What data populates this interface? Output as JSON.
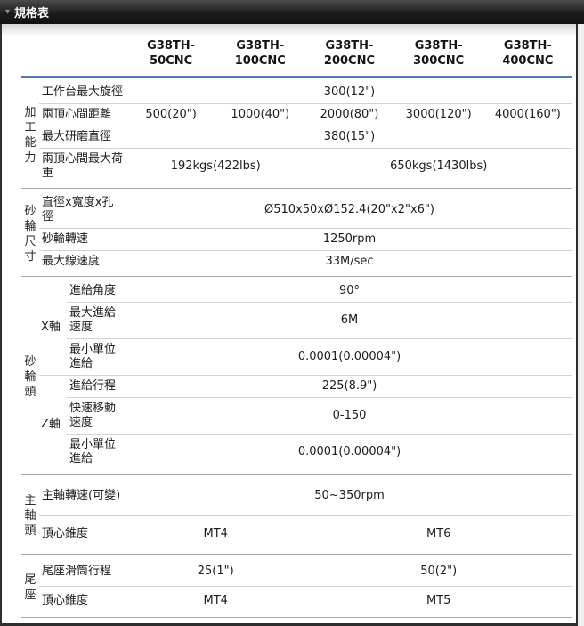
{
  "panel": {
    "title": "規格表",
    "collapse_icon": "▾"
  },
  "table": {
    "models": [
      {
        "line1": "G38TH-",
        "line2": "50CNC"
      },
      {
        "line1": "G38TH-",
        "line2": "100CNC"
      },
      {
        "line1": "G38TH-",
        "line2": "200CNC"
      },
      {
        "line1": "G38TH-",
        "line2": "300CNC"
      },
      {
        "line1": "G38TH-",
        "line2": "400CNC"
      }
    ],
    "accent_color": "#4a7cbe",
    "groups": [
      {
        "name": "加工能力",
        "rows": [
          {
            "label": "工作台最大旋徑",
            "values": [
              {
                "text": "300(12\")",
                "span": 5
              }
            ]
          },
          {
            "label": "兩頂心間距離",
            "values": [
              {
                "text": "500(20\")",
                "span": 1
              },
              {
                "text": "1000(40\")",
                "span": 1
              },
              {
                "text": "2000(80\")",
                "span": 1
              },
              {
                "text": "3000(120\")",
                "span": 1
              },
              {
                "text": "4000(160\")",
                "span": 1
              }
            ]
          },
          {
            "label": "最大研磨直徑",
            "values": [
              {
                "text": "380(15\")",
                "span": 5
              }
            ]
          },
          {
            "label": "兩頂心間最大荷重",
            "values": [
              {
                "text": "192kgs(422lbs)",
                "span": 2
              },
              {
                "text": "650kgs(1430lbs)",
                "span": 3
              }
            ]
          }
        ]
      },
      {
        "name": "砂輪尺寸",
        "rows": [
          {
            "label": "直徑x寬度x孔徑",
            "values": [
              {
                "text": "Ø510x50xØ152.4(20\"x2\"x6\")",
                "span": 5
              }
            ]
          },
          {
            "label": "砂輪轉速",
            "values": [
              {
                "text": "1250rpm",
                "span": 5
              }
            ]
          },
          {
            "label": "最大線速度",
            "values": [
              {
                "text": "33M/sec",
                "span": 5
              }
            ]
          }
        ]
      },
      {
        "name": "砂輪頭",
        "subgroups": [
          {
            "name": "X軸",
            "rows": [
              {
                "label": "進給角度",
                "values": [
                  {
                    "text": "90°",
                    "span": 5
                  }
                ]
              },
              {
                "label": "最大進給速度",
                "values": [
                  {
                    "text": "6M",
                    "span": 5
                  }
                ]
              },
              {
                "label": "最小單位進給",
                "values": [
                  {
                    "text": "0.0001(0.00004\")",
                    "span": 5
                  }
                ]
              }
            ]
          },
          {
            "name": "Z軸",
            "rows": [
              {
                "label": "進給行程",
                "values": [
                  {
                    "text": "225(8.9\")",
                    "span": 5
                  }
                ]
              },
              {
                "label": "快速移動速度",
                "values": [
                  {
                    "text": "0-150",
                    "span": 5
                  }
                ]
              },
              {
                "label": "最小單位進給",
                "values": [
                  {
                    "text": "0.0001(0.00004\")",
                    "span": 5
                  }
                ]
              }
            ]
          }
        ]
      },
      {
        "name": "主軸頭",
        "rows": [
          {
            "label": "主軸轉速(可變)",
            "values": [
              {
                "text": "50~350rpm",
                "span": 5
              }
            ]
          },
          {
            "label": "頂心錐度",
            "values": [
              {
                "text": "MT4",
                "span": 2
              },
              {
                "text": "MT6",
                "span": 3
              }
            ]
          }
        ]
      },
      {
        "name": "尾座",
        "rows": [
          {
            "label": "尾座滑筒行程",
            "values": [
              {
                "text": "25(1\")",
                "span": 2
              },
              {
                "text": "50(2\")",
                "span": 3
              }
            ]
          },
          {
            "label": "頂心錐度",
            "values": [
              {
                "text": "MT4",
                "span": 2
              },
              {
                "text": "MT5",
                "span": 3
              }
            ]
          }
        ]
      }
    ]
  }
}
